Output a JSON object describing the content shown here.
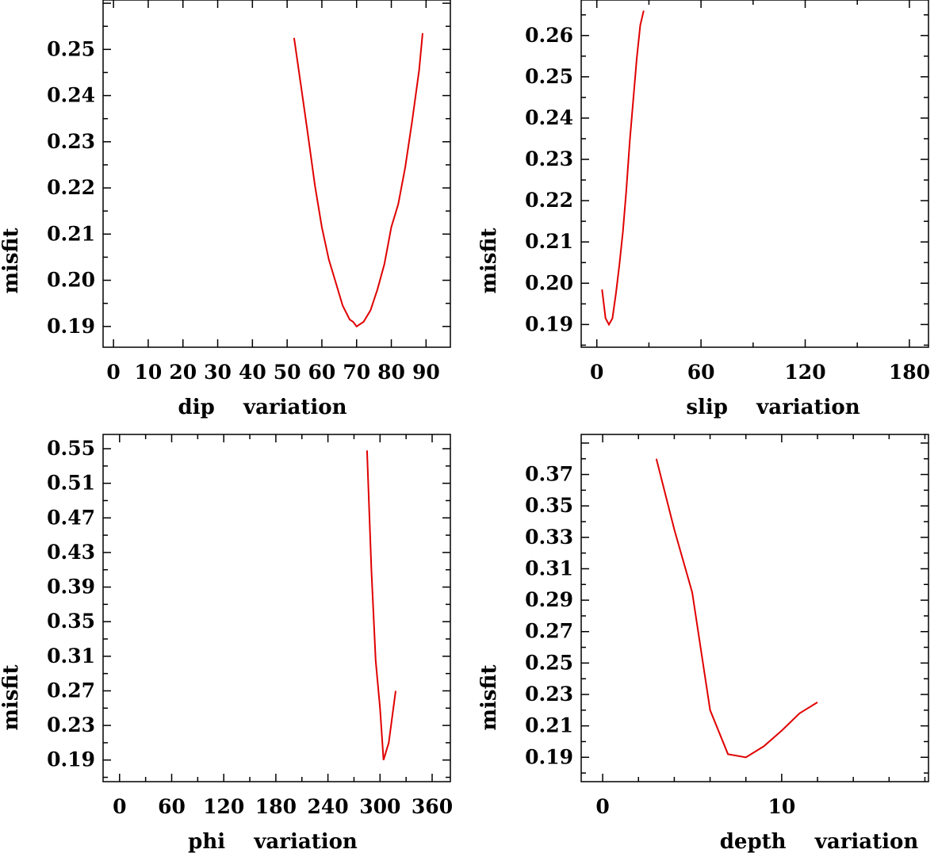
{
  "colors": {
    "line": "#e00000",
    "axis": "#000000",
    "background": "#ffffff"
  },
  "chart_data": [
    {
      "id": "dip",
      "type": "line",
      "xlabel": "dip    variation",
      "ylabel": "misfit",
      "xlim": [
        -3,
        97
      ],
      "ylim": [
        0.1855,
        0.2607
      ],
      "xticks": [
        0,
        10,
        20,
        30,
        40,
        50,
        60,
        70,
        80,
        90
      ],
      "xticklabels": [
        "0",
        "10",
        "20",
        "30",
        "40",
        "50",
        "60",
        "70",
        "80",
        "90"
      ],
      "yticks": [
        0.19,
        0.2,
        0.21,
        0.22,
        0.23,
        0.24,
        0.25
      ],
      "yticklabels": [
        "0.19",
        "0.20",
        "0.21",
        "0.22",
        "0.23",
        "0.24",
        "0.25"
      ],
      "series": [
        {
          "x": [
            52,
            54,
            56,
            58,
            60,
            62,
            64,
            66,
            68,
            69,
            70,
            72,
            74,
            76,
            78,
            80,
            82,
            84,
            86,
            88,
            89
          ],
          "y": [
            0.2525,
            0.242,
            0.2315,
            0.2205,
            0.2115,
            0.2045,
            0.1995,
            0.1945,
            0.1915,
            0.191,
            0.19,
            0.191,
            0.1935,
            0.198,
            0.2035,
            0.2115,
            0.2165,
            0.2245,
            0.2345,
            0.2455,
            0.2535
          ]
        }
      ]
    },
    {
      "id": "slip",
      "type": "line",
      "xlabel": "slip    variation",
      "ylabel": "misfit",
      "xlim": [
        -9,
        191
      ],
      "ylim": [
        0.1845,
        0.2686
      ],
      "xticks": [
        0,
        60,
        120,
        180
      ],
      "xticklabels": [
        "0",
        "60",
        "120",
        "180"
      ],
      "yticks": [
        0.19,
        0.2,
        0.21,
        0.22,
        0.23,
        0.24,
        0.25,
        0.26
      ],
      "yticklabels": [
        "0.19",
        "0.20",
        "0.21",
        "0.22",
        "0.23",
        "0.24",
        "0.25",
        "0.26"
      ],
      "series": [
        {
          "x": [
            3,
            5,
            7,
            9,
            11,
            13,
            15,
            17,
            19,
            21,
            23,
            25,
            27
          ],
          "y": [
            0.1985,
            0.1915,
            0.19,
            0.1915,
            0.1975,
            0.2045,
            0.2125,
            0.2225,
            0.2345,
            0.2445,
            0.2545,
            0.2625,
            0.266
          ]
        }
      ]
    },
    {
      "id": "phi",
      "type": "line",
      "xlabel": "phi    variation",
      "ylabel": "misfit",
      "xlim": [
        -19,
        381
      ],
      "ylim": [
        0.165,
        0.5665
      ],
      "xticks": [
        0,
        60,
        120,
        180,
        240,
        300,
        360
      ],
      "xticklabels": [
        "0",
        "60",
        "120",
        "180",
        "240",
        "300",
        "360"
      ],
      "yticks": [
        0.19,
        0.23,
        0.27,
        0.31,
        0.35,
        0.39,
        0.43,
        0.47,
        0.51,
        0.55
      ],
      "yticklabels": [
        "0.19",
        "0.23",
        "0.27",
        "0.31",
        "0.35",
        "0.39",
        "0.43",
        "0.47",
        "0.51",
        "0.55"
      ],
      "series": [
        {
          "x": [
            285,
            290,
            295,
            300,
            304,
            310,
            318
          ],
          "y": [
            0.548,
            0.41,
            0.305,
            0.25,
            0.19,
            0.21,
            0.27
          ]
        }
      ]
    },
    {
      "id": "depth",
      "type": "line",
      "xlabel": "depth    variation",
      "ylabel": "misfit",
      "xlim": [
        -1.2,
        18.2
      ],
      "ylim": [
        0.1745,
        0.3955
      ],
      "xticks": [
        0,
        10
      ],
      "xticklabels": [
        "0",
        "10"
      ],
      "yticks": [
        0.19,
        0.21,
        0.23,
        0.25,
        0.27,
        0.29,
        0.31,
        0.33,
        0.35,
        0.37
      ],
      "yticklabels": [
        "0.19",
        "0.21",
        "0.23",
        "0.25",
        "0.27",
        "0.29",
        "0.31",
        "0.33",
        "0.35",
        "0.37"
      ],
      "series": [
        {
          "x": [
            3,
            4,
            5,
            6,
            7,
            8,
            9,
            10,
            11,
            12
          ],
          "y": [
            0.38,
            0.335,
            0.295,
            0.22,
            0.192,
            0.19,
            0.197,
            0.207,
            0.218,
            0.225
          ]
        }
      ]
    }
  ]
}
